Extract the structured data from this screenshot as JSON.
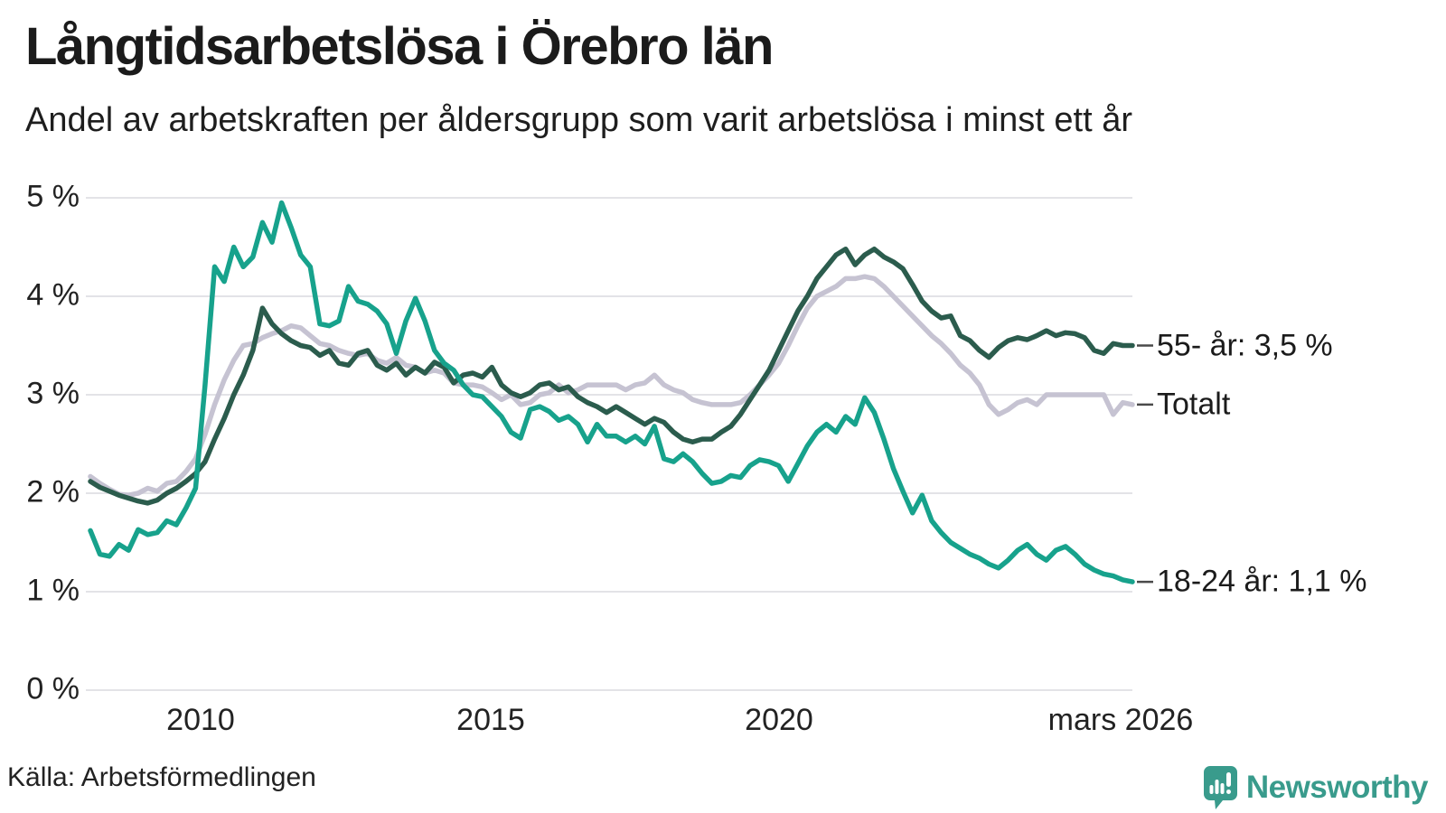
{
  "header": {
    "title": "Långtidsarbetslösa i Örebro län",
    "subtitle": "Andel av arbetskraften per åldersgrupp som varit arbetslösa i minst ett år"
  },
  "axes": {
    "y_ticks": [
      "5 %",
      "4 %",
      "3 %",
      "2 %",
      "1 %",
      "0 %"
    ],
    "x_ticks": [
      "2010",
      "2015",
      "2020",
      "mars 2026"
    ]
  },
  "source": {
    "label": "Källa: Arbetsförmedlingen"
  },
  "branding": {
    "name": "Newsworthy",
    "logo_icon": "speech-bubble-bar-chart",
    "color": "#399b8c"
  },
  "colors": {
    "grid": "#e3e3e7",
    "end_tick": "#4a4a4a",
    "series_older": "#2b5c4d",
    "series_total": "#c6c3d2",
    "series_youth": "#17a28c"
  },
  "chart_data": {
    "type": "line",
    "title": "Långtidsarbetslösa i Örebro län",
    "subtitle": "Andel av arbetskraften per åldersgrupp som varit arbetslösa i minst ett år",
    "unit": "%",
    "x_start": "2008-02",
    "x_end": "2026-03",
    "x_step_months": 2,
    "x_tick_labels": [
      "2010",
      "2015",
      "2020",
      "mars 2026"
    ],
    "ylim": [
      0,
      5
    ],
    "y_tick_labels": [
      "0 %",
      "1 %",
      "2 %",
      "3 %",
      "4 %",
      "5 %"
    ],
    "grid": "horizontal",
    "legend_position": "line-end-labels-right",
    "source": "Källa: Arbetsförmedlingen",
    "series": [
      {
        "name": "Totalt",
        "end_label": "Totalt",
        "end_value": 2.9,
        "color": "#c6c3d2",
        "values": [
          2.17,
          2.1,
          2.04,
          1.99,
          1.98,
          2.0,
          2.05,
          2.02,
          2.1,
          2.12,
          2.22,
          2.35,
          2.6,
          2.9,
          3.15,
          3.35,
          3.5,
          3.52,
          3.58,
          3.62,
          3.65,
          3.7,
          3.68,
          3.6,
          3.52,
          3.5,
          3.45,
          3.42,
          3.4,
          3.42,
          3.35,
          3.32,
          3.38,
          3.3,
          3.28,
          3.22,
          3.25,
          3.22,
          3.12,
          3.1,
          3.1,
          3.08,
          3.02,
          2.95,
          3.0,
          2.9,
          2.92,
          3.0,
          3.02,
          3.1,
          3.02,
          3.05,
          3.1,
          3.1,
          3.1,
          3.1,
          3.05,
          3.1,
          3.12,
          3.2,
          3.1,
          3.05,
          3.02,
          2.95,
          2.92,
          2.9,
          2.9,
          2.9,
          2.92,
          3.0,
          3.1,
          3.2,
          3.32,
          3.5,
          3.7,
          3.88,
          4.0,
          4.05,
          4.1,
          4.18,
          4.18,
          4.2,
          4.18,
          4.1,
          4.0,
          3.9,
          3.8,
          3.7,
          3.6,
          3.52,
          3.42,
          3.3,
          3.22,
          3.1,
          2.9,
          2.8,
          2.85,
          2.92,
          2.95,
          2.9,
          3.0,
          3.0,
          3.0,
          3.0,
          3.0,
          3.0,
          3.0,
          2.8,
          2.92,
          2.9
        ]
      },
      {
        "name": "55- år",
        "end_label": "55- år: 3,5 %",
        "end_value": 3.5,
        "color": "#2b5c4d",
        "values": [
          2.12,
          2.06,
          2.02,
          1.98,
          1.95,
          1.92,
          1.9,
          1.93,
          2.0,
          2.05,
          2.12,
          2.2,
          2.32,
          2.55,
          2.76,
          3.0,
          3.2,
          3.45,
          3.88,
          3.72,
          3.62,
          3.55,
          3.5,
          3.48,
          3.4,
          3.45,
          3.32,
          3.3,
          3.42,
          3.45,
          3.3,
          3.25,
          3.32,
          3.2,
          3.28,
          3.22,
          3.33,
          3.28,
          3.12,
          3.2,
          3.22,
          3.18,
          3.28,
          3.1,
          3.02,
          2.98,
          3.02,
          3.1,
          3.12,
          3.05,
          3.08,
          2.98,
          2.92,
          2.88,
          2.82,
          2.88,
          2.82,
          2.76,
          2.7,
          2.76,
          2.72,
          2.62,
          2.55,
          2.52,
          2.55,
          2.55,
          2.62,
          2.68,
          2.8,
          2.95,
          3.1,
          3.25,
          3.45,
          3.65,
          3.85,
          4.0,
          4.18,
          4.3,
          4.42,
          4.48,
          4.32,
          4.42,
          4.48,
          4.4,
          4.35,
          4.28,
          4.12,
          3.95,
          3.85,
          3.78,
          3.8,
          3.6,
          3.55,
          3.45,
          3.38,
          3.48,
          3.55,
          3.58,
          3.56,
          3.6,
          3.65,
          3.6,
          3.63,
          3.62,
          3.58,
          3.45,
          3.42,
          3.52,
          3.5,
          3.5
        ]
      },
      {
        "name": "18-24 år",
        "end_label": "18-24 år: 1,1 %",
        "end_value": 1.1,
        "color": "#17a28c",
        "values": [
          1.62,
          1.38,
          1.36,
          1.48,
          1.42,
          1.63,
          1.58,
          1.6,
          1.72,
          1.68,
          1.85,
          2.05,
          3.1,
          4.3,
          4.15,
          4.5,
          4.3,
          4.4,
          4.75,
          4.55,
          4.95,
          4.7,
          4.42,
          4.3,
          3.72,
          3.7,
          3.75,
          4.1,
          3.95,
          3.92,
          3.85,
          3.72,
          3.42,
          3.75,
          3.98,
          3.75,
          3.45,
          3.32,
          3.25,
          3.1,
          3.0,
          2.98,
          2.88,
          2.78,
          2.62,
          2.56,
          2.85,
          2.88,
          2.83,
          2.74,
          2.78,
          2.7,
          2.52,
          2.7,
          2.58,
          2.58,
          2.52,
          2.58,
          2.5,
          2.68,
          2.35,
          2.32,
          2.4,
          2.32,
          2.2,
          2.1,
          2.12,
          2.18,
          2.16,
          2.28,
          2.34,
          2.32,
          2.28,
          2.12,
          2.3,
          2.48,
          2.62,
          2.7,
          2.62,
          2.78,
          2.7,
          2.97,
          2.82,
          2.55,
          2.25,
          2.02,
          1.8,
          1.98,
          1.72,
          1.6,
          1.5,
          1.44,
          1.38,
          1.34,
          1.28,
          1.24,
          1.32,
          1.42,
          1.48,
          1.38,
          1.32,
          1.42,
          1.46,
          1.38,
          1.28,
          1.22,
          1.18,
          1.16,
          1.12,
          1.1
        ]
      }
    ]
  }
}
